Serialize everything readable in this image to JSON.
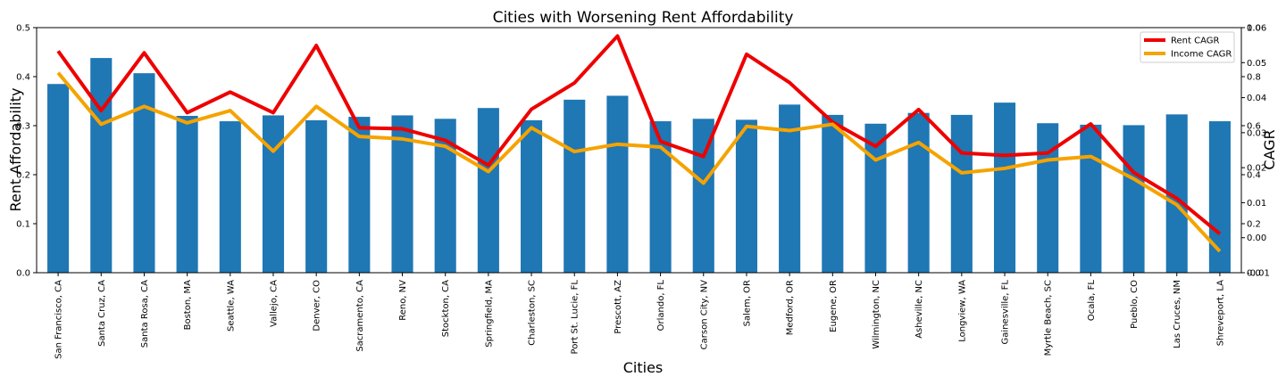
{
  "chart_data": {
    "type": "bar",
    "title": "Cities with Worsening Rent Affordability",
    "xlabel": "Cities",
    "ylabel": "Rent Affordability",
    "y2label": "CAGR",
    "ylim": [
      0,
      0.5
    ],
    "y2lim": [
      -0.01,
      0.06
    ],
    "y3lim": [
      0.0,
      1.0
    ],
    "yticks": [
      "0.0",
      "0.1",
      "0.2",
      "0.3",
      "0.4",
      "0.5"
    ],
    "y2ticks": [
      "-0.01",
      "0.00",
      "0.01",
      "0.02",
      "0.03",
      "0.04",
      "0.05",
      "0.06"
    ],
    "y3ticks": [
      "0.0",
      "0.2",
      "0.4",
      "0.6",
      "0.8",
      "1.0"
    ],
    "grid": false,
    "legend_position": "top-right",
    "categories": [
      "San Francisco, CA",
      "Santa Cruz, CA",
      "Santa Rosa, CA",
      "Boston, MA",
      "Seattle, WA",
      "Vallejo, CA",
      "Denver, CO",
      "Sacramento, CA",
      "Reno, NV",
      "Stockton, CA",
      "Springfield, MA",
      "Charleston, SC",
      "Port St. Lucie, FL",
      "Prescott, AZ",
      "Orlando, FL",
      "Carson City, NV",
      "Salem, OR",
      "Medford, OR",
      "Eugene, OR",
      "Wilmington, NC",
      "Asheville, NC",
      "Longview, WA",
      "Gainesville, FL",
      "Myrtle Beach, SC",
      "Ocala, FL",
      "Pueblo, CO",
      "Las Cruces, NM",
      "Shreveport, LA"
    ],
    "values": [
      0.385,
      0.438,
      0.407,
      0.32,
      0.309,
      0.321,
      0.311,
      0.318,
      0.321,
      0.314,
      0.336,
      0.311,
      0.353,
      0.361,
      0.309,
      0.314,
      0.312,
      0.343,
      0.322,
      0.304,
      0.326,
      0.322,
      0.347,
      0.305,
      0.302,
      0.301,
      0.323,
      0.309
    ],
    "series": [
      {
        "name": "Rent CAGR",
        "color": "#ee0000",
        "values": [
          0.0533,
          0.0363,
          0.0528,
          0.0357,
          0.0416,
          0.0357,
          0.0549,
          0.0314,
          0.0311,
          0.0278,
          0.0207,
          0.0367,
          0.0442,
          0.0576,
          0.0275,
          0.0232,
          0.0524,
          0.0443,
          0.033,
          0.0261,
          0.0366,
          0.0242,
          0.0235,
          0.0242,
          0.0325,
          0.0186,
          0.0112,
          0.0011
        ]
      },
      {
        "name": "Income CAGR",
        "color": "#f5a300",
        "values": [
          0.0471,
          0.0324,
          0.0375,
          0.0328,
          0.0363,
          0.0247,
          0.0375,
          0.0289,
          0.0282,
          0.0261,
          0.0189,
          0.0314,
          0.0246,
          0.0267,
          0.0259,
          0.0156,
          0.0318,
          0.0306,
          0.0324,
          0.0222,
          0.0272,
          0.0185,
          0.0198,
          0.0222,
          0.0232,
          0.0168,
          0.0094,
          -0.0039
        ]
      }
    ]
  }
}
